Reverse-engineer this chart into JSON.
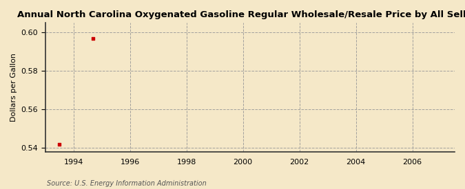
{
  "title": "Annual North Carolina Oxygenated Gasoline Regular Wholesale/Resale Price by All Sellers",
  "ylabel": "Dollars per Gallon",
  "source": "Source: U.S. Energy Information Administration",
  "background_color": "#f5e8c8",
  "plot_bg_color": "#fdf6e3",
  "data_x": [
    1993.5,
    1994.7
  ],
  "data_y": [
    0.542,
    0.597
  ],
  "point_color": "#cc0000",
  "xlim": [
    1993.0,
    2007.5
  ],
  "ylim": [
    0.538,
    0.605
  ],
  "yticks": [
    0.54,
    0.56,
    0.58,
    0.6
  ],
  "xticks": [
    1994,
    1996,
    1998,
    2000,
    2002,
    2004,
    2006
  ],
  "title_fontsize": 9.5,
  "label_fontsize": 8.0,
  "tick_fontsize": 8.0,
  "source_fontsize": 7.0
}
